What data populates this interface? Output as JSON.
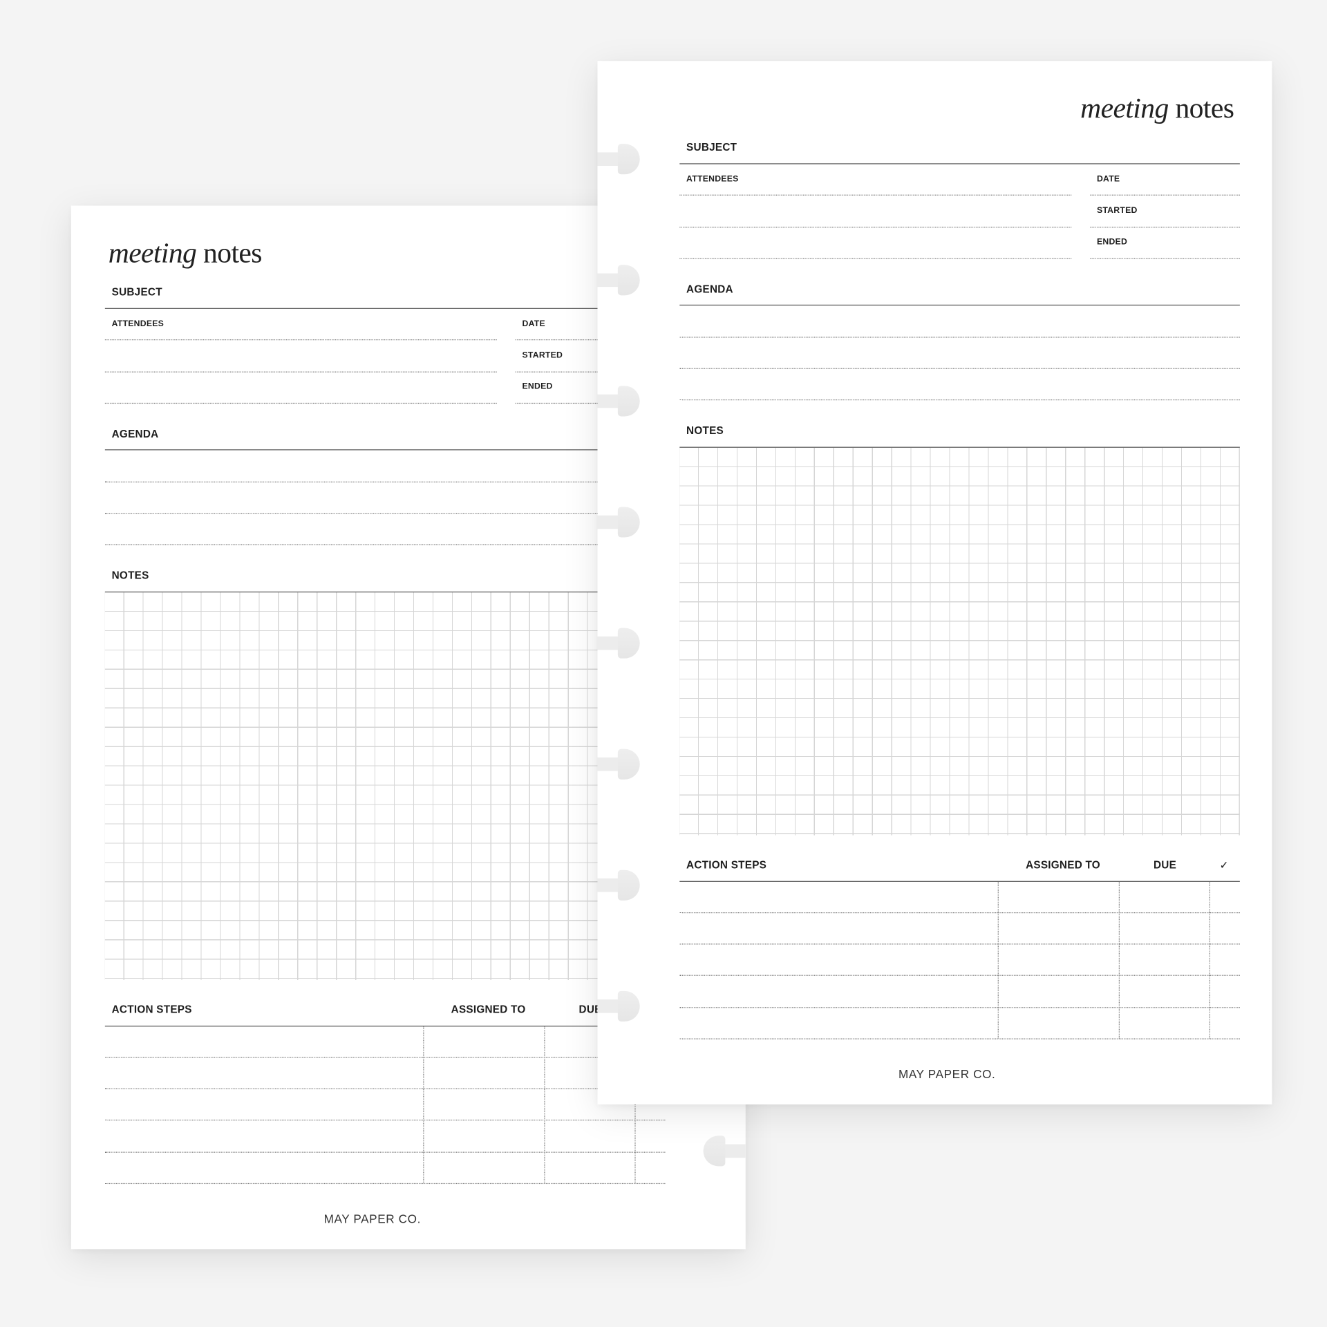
{
  "background_color": "#f4f4f4",
  "pages": {
    "left": {
      "title_italic": "meeting",
      "title_regular": "notes",
      "subject_label": "SUBJECT",
      "attendees_label": "ATTENDEES",
      "date_label": "DATE",
      "started_label": "STARTED",
      "ended_label": "ENDED",
      "agenda_label": "AGENDA",
      "notes_label": "NOTES",
      "action_steps_label": "ACTION STEPS",
      "assigned_to_label": "ASSIGNED TO",
      "due_label": "DUE",
      "done_label": "✓",
      "footer_brand": "MAY PAPER CO."
    },
    "right": {
      "title_italic": "meeting",
      "title_regular": "notes",
      "subject_label": "SUBJECT",
      "attendees_label": "ATTENDEES",
      "date_label": "DATE",
      "started_label": "STARTED",
      "ended_label": "ENDED",
      "agenda_label": "AGENDA",
      "notes_label": "NOTES",
      "action_steps_label": "ACTION STEPS",
      "assigned_to_label": "ASSIGNED TO",
      "due_label": "DUE",
      "done_label": "✓",
      "footer_brand": "MAY PAPER CO."
    }
  },
  "icons": {
    "binder_tab": "disc-binding-tab-icon",
    "check": "checkmark-icon"
  }
}
